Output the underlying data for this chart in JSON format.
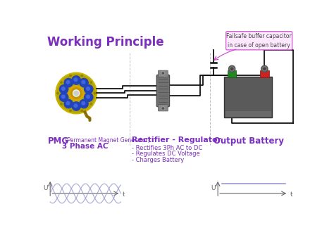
{
  "title": "Working Principle",
  "title_color": "#7B2FBE",
  "title_fontsize": 12,
  "bg_color": "#ffffff",
  "purple": "#7B2FBE",
  "label_pmg": "PMG",
  "label_pmg_sub": " (Permanent Magnet Generator)",
  "label_pmg2": "3 Phase AC",
  "label_rect": "Rectifier - Regulator",
  "label_battery": "Output Battery",
  "bullet1": "- Rectifies 3Ph AC to DC",
  "bullet2": "- Regulates DC Voltage",
  "bullet3": "- Charges Battery",
  "annotation": "Failsafe buffer capacitor\nin case of open battery",
  "annotation_color": "#cc44cc",
  "annotation_bg": "#fde8ff",
  "divider_color": "#c0c0c0",
  "line_color": "#111111",
  "wave_color": "#9999cc",
  "dc_color": "#9999cc",
  "figsize": [
    4.74,
    3.34
  ],
  "dpi": 100
}
